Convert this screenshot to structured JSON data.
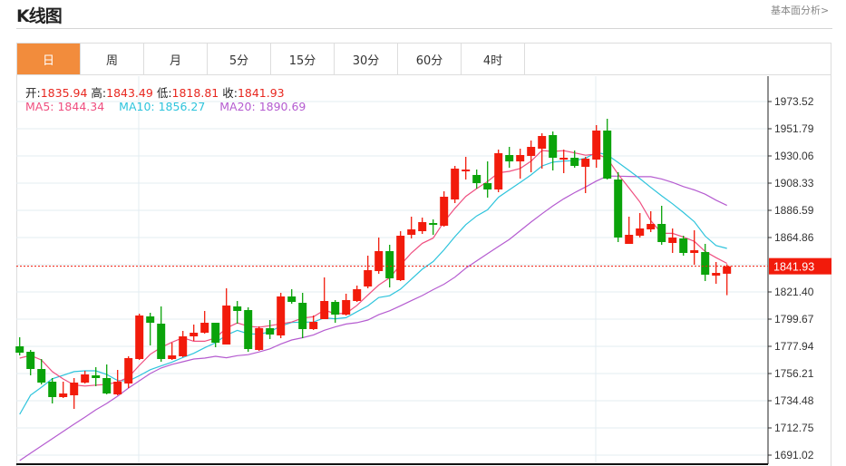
{
  "header": {
    "title": "K线图",
    "fundamental_link": "基本面分析>"
  },
  "tabs": [
    {
      "label": "日",
      "active": true
    },
    {
      "label": "周"
    },
    {
      "label": "月"
    },
    {
      "label": "5分"
    },
    {
      "label": "15分"
    },
    {
      "label": "30分"
    },
    {
      "label": "60分"
    },
    {
      "label": "4时"
    }
  ],
  "info": {
    "open_label": "开:",
    "open": "1835.94",
    "high_label": "高:",
    "high": "1843.49",
    "low_label": "低:",
    "low": "1818.81",
    "close_label": "收:",
    "close": "1841.93",
    "ma5": "MA5: 1844.34",
    "ma10": "MA10: 1856.27",
    "ma20": "MA20: 1890.69"
  },
  "colors": {
    "up": "#f21b0b",
    "down": "#0aa30a",
    "ma5": "#ef4f80",
    "ma10": "#2ec4dc",
    "ma20": "#b55cd0",
    "accent": "#f28c3c",
    "last_price": "#f21b0b"
  },
  "chart_data": {
    "type": "candlestick",
    "title": "",
    "y_ticks": [
      "1973.52",
      "1951.79",
      "1930.06",
      "1908.33",
      "1886.59",
      "1864.86",
      "1821.40",
      "1799.67",
      "1777.94",
      "1756.21",
      "1734.48",
      "1712.75",
      "1691.02"
    ],
    "ylim": [
      1686,
      1996
    ],
    "grid": true,
    "last_price": 1841.93,
    "last_price_label": "1841.93",
    "ohlc": [
      [
        1777.94,
        1785.18,
        1770.7,
        1772.87
      ],
      [
        1773.59,
        1775.04,
        1754.76,
        1759.83
      ],
      [
        1759.83,
        1767.8,
        1747.52,
        1748.97
      ],
      [
        1749.69,
        1752.59,
        1732.31,
        1737.38
      ],
      [
        1737.38,
        1749.69,
        1736.65,
        1740.27
      ],
      [
        1738.82,
        1752.59,
        1727.96,
        1748.97
      ],
      [
        1748.97,
        1758.38,
        1748.24,
        1755.49
      ],
      [
        1754.76,
        1761.28,
        1746.07,
        1752.59
      ],
      [
        1752.59,
        1763.45,
        1739.55,
        1740.27
      ],
      [
        1739.55,
        1759.11,
        1738.82,
        1749.69
      ],
      [
        1748.24,
        1769.97,
        1744.62,
        1768.52
      ],
      [
        1767.8,
        1804.02,
        1767.08,
        1802.57
      ],
      [
        1801.84,
        1804.74,
        1778.67,
        1796.77
      ],
      [
        1796.05,
        1809.81,
        1765.63,
        1767.8
      ],
      [
        1767.8,
        1780.84,
        1767.08,
        1770.7
      ],
      [
        1769.97,
        1790.26,
        1769.25,
        1785.91
      ],
      [
        1785.91,
        1795.33,
        1782.29,
        1788.81
      ],
      [
        1788.81,
        1806.19,
        1788.08,
        1796.77
      ],
      [
        1796.77,
        1796.77,
        1777.22,
        1780.84
      ],
      [
        1779.39,
        1824.3,
        1779.39,
        1810.54
      ],
      [
        1809.81,
        1814.16,
        1796.05,
        1806.19
      ],
      [
        1806.92,
        1809.09,
        1773.59,
        1775.77
      ],
      [
        1775.04,
        1793.88,
        1774.32,
        1792.43
      ],
      [
        1792.43,
        1798.95,
        1783.74,
        1787.36
      ],
      [
        1786.63,
        1820.68,
        1784.46,
        1817.78
      ],
      [
        1817.78,
        1823.58,
        1811.99,
        1813.43
      ],
      [
        1812.71,
        1820.68,
        1784.46,
        1791.7
      ],
      [
        1791.7,
        1802.57,
        1790.98,
        1797.5
      ],
      [
        1799.67,
        1832.99,
        1799.67,
        1814.16
      ],
      [
        1813.43,
        1814.88,
        1796.77,
        1803.29
      ],
      [
        1803.29,
        1819.95,
        1802.57,
        1814.88
      ],
      [
        1814.16,
        1826.47,
        1813.43,
        1823.58
      ],
      [
        1825.75,
        1850.38,
        1824.3,
        1838.79
      ],
      [
        1838.06,
        1864.87,
        1835.89,
        1854.0
      ],
      [
        1854.0,
        1859.07,
        1825.02,
        1832.27
      ],
      [
        1830.82,
        1869.94,
        1830.1,
        1866.31
      ],
      [
        1867.04,
        1881.53,
        1864.14,
        1871.38
      ],
      [
        1869.94,
        1880.8,
        1867.76,
        1877.18
      ],
      [
        1876.45,
        1879.35,
        1867.04,
        1875.01
      ],
      [
        1874.28,
        1901.81,
        1873.56,
        1897.46
      ],
      [
        1895.29,
        1922.09,
        1892.39,
        1919.92
      ],
      [
        1917.74,
        1929.33,
        1911.22,
        1919.19
      ],
      [
        1914.85,
        1919.19,
        1903.98,
        1908.33
      ],
      [
        1908.33,
        1925.71,
        1896.74,
        1903.26
      ],
      [
        1903.26,
        1935.13,
        1901.08,
        1932.23
      ],
      [
        1930.78,
        1937.3,
        1920.64,
        1925.71
      ],
      [
        1925.71,
        1935.85,
        1911.95,
        1930.78
      ],
      [
        1930.06,
        1942.37,
        1917.02,
        1937.3
      ],
      [
        1935.85,
        1948.17,
        1919.92,
        1945.99
      ],
      [
        1946.72,
        1949.62,
        1918.47,
        1928.61
      ],
      [
        1927.16,
        1935.13,
        1916.3,
        1928.61
      ],
      [
        1928.61,
        1934.4,
        1920.64,
        1922.09
      ],
      [
        1921.37,
        1929.33,
        1900.36,
        1927.89
      ],
      [
        1927.16,
        1954.69,
        1920.64,
        1950.34
      ],
      [
        1950.34,
        1959.76,
        1911.22,
        1911.95
      ],
      [
        1911.22,
        1917.02,
        1861.24,
        1864.87
      ],
      [
        1859.79,
        1881.53,
        1859.79,
        1867.04
      ],
      [
        1866.31,
        1884.42,
        1864.87,
        1872.11
      ],
      [
        1871.38,
        1885.87,
        1869.21,
        1875.73
      ],
      [
        1875.73,
        1890.22,
        1859.07,
        1861.24
      ],
      [
        1860.52,
        1872.11,
        1852.55,
        1864.87
      ],
      [
        1864.14,
        1866.31,
        1850.38,
        1852.55
      ],
      [
        1852.55,
        1870.66,
        1843.13,
        1854.72
      ],
      [
        1853.28,
        1859.79,
        1830.1,
        1835.17
      ],
      [
        1834.44,
        1845.31,
        1827.92,
        1836.61
      ],
      [
        1835.94,
        1843.49,
        1818.81,
        1841.93
      ]
    ],
    "ma_leading": {
      "ma5": [
        1768.5,
        1770.7,
        1767.0,
        1757.7
      ],
      "ma10": [
        1723.6,
        1738.9,
        1745.3,
        1752.0,
        1754.8,
        1757.7,
        1758.4,
        1758.4,
        1755.5
      ],
      "ma20": [
        1686.7,
        1692.5,
        1698.3,
        1704.1,
        1709.9,
        1715.7,
        1721.4,
        1727.2,
        1732.3,
        1738.1,
        1744.6,
        1750.4,
        1756.2,
        1760.6,
        1763.5,
        1765.6,
        1767.8,
        1768.5,
        1770.0
      ]
    }
  }
}
